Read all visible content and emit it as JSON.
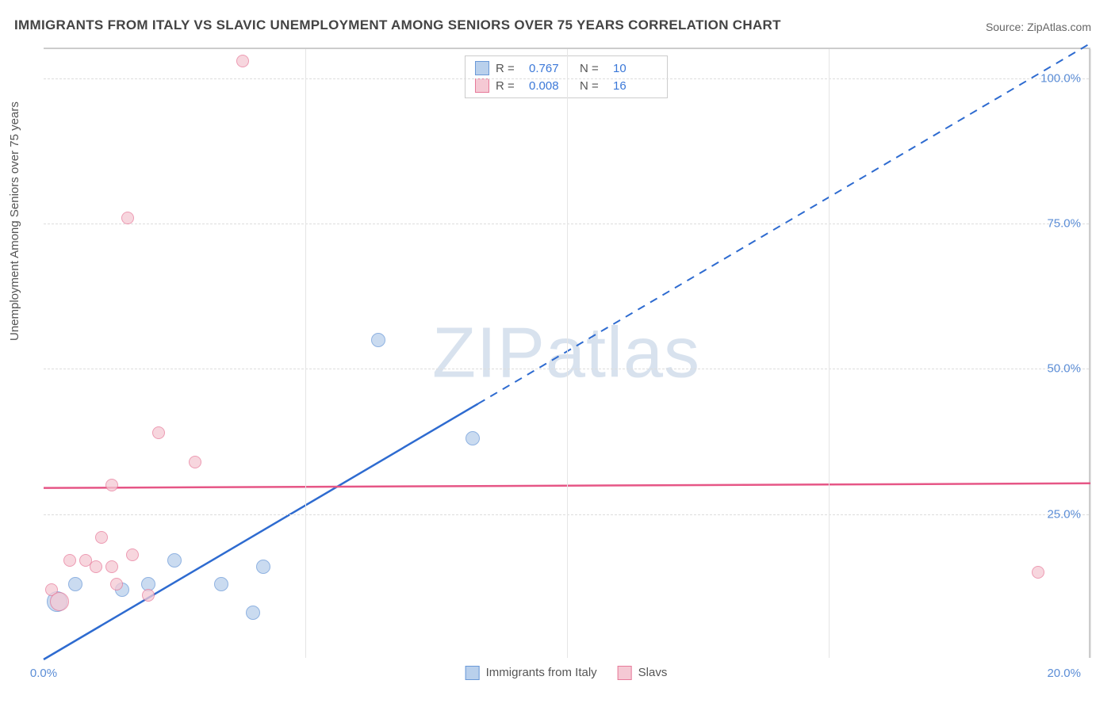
{
  "title": "IMMIGRANTS FROM ITALY VS SLAVIC UNEMPLOYMENT AMONG SENIORS OVER 75 YEARS CORRELATION CHART",
  "source_label": "Source:",
  "source_name": "ZipAtlas.com",
  "ylabel": "Unemployment Among Seniors over 75 years",
  "watermark": "ZIPatlas",
  "chart": {
    "type": "scatter",
    "background_color": "#ffffff",
    "grid_color": "#dddddd",
    "axis_color": "#cccccc",
    "tick_label_color": "#5b8dd6",
    "xlim": [
      0,
      20
    ],
    "ylim": [
      0,
      105
    ],
    "xtick_labels": [
      {
        "v": 0,
        "label": "0.0%"
      },
      {
        "v": 20,
        "label": "20.0%"
      }
    ],
    "xtick_lines": [
      5,
      10,
      15,
      20
    ],
    "ytick_labels": [
      {
        "v": 25,
        "label": "25.0%"
      },
      {
        "v": 50,
        "label": "50.0%"
      },
      {
        "v": 75,
        "label": "75.0%"
      },
      {
        "v": 100,
        "label": "100.0%"
      }
    ],
    "series": [
      {
        "name": "Immigrants from Italy",
        "fill": "#b9d0ec",
        "stroke": "#6a99d8",
        "line_color": "#2e6bd0",
        "trend": {
          "slope": 5.3,
          "intercept": 0,
          "solid_to_x": 8.3
        },
        "points": [
          {
            "x": 0.25,
            "y": 10,
            "r": 13
          },
          {
            "x": 0.6,
            "y": 13,
            "r": 9
          },
          {
            "x": 1.5,
            "y": 12,
            "r": 9
          },
          {
            "x": 2.0,
            "y": 13,
            "r": 9
          },
          {
            "x": 2.5,
            "y": 17,
            "r": 9
          },
          {
            "x": 3.4,
            "y": 13,
            "r": 9
          },
          {
            "x": 4.2,
            "y": 16,
            "r": 9
          },
          {
            "x": 4.0,
            "y": 8,
            "r": 9
          },
          {
            "x": 6.4,
            "y": 55,
            "r": 9
          },
          {
            "x": 8.2,
            "y": 38,
            "r": 9
          }
        ]
      },
      {
        "name": "Slavs",
        "fill": "#f5c9d4",
        "stroke": "#e77a9a",
        "line_color": "#e65686",
        "trend": {
          "slope": 0.04,
          "intercept": 29.5,
          "solid_to_x": 20
        },
        "points": [
          {
            "x": 0.15,
            "y": 12,
            "r": 8
          },
          {
            "x": 0.3,
            "y": 10,
            "r": 12
          },
          {
            "x": 0.5,
            "y": 17,
            "r": 8
          },
          {
            "x": 0.8,
            "y": 17,
            "r": 8
          },
          {
            "x": 1.0,
            "y": 16,
            "r": 8
          },
          {
            "x": 1.1,
            "y": 21,
            "r": 8
          },
          {
            "x": 1.3,
            "y": 16,
            "r": 8
          },
          {
            "x": 1.4,
            "y": 13,
            "r": 8
          },
          {
            "x": 1.3,
            "y": 30,
            "r": 8
          },
          {
            "x": 1.7,
            "y": 18,
            "r": 8
          },
          {
            "x": 2.0,
            "y": 11,
            "r": 8
          },
          {
            "x": 2.2,
            "y": 39,
            "r": 8
          },
          {
            "x": 2.9,
            "y": 34,
            "r": 8
          },
          {
            "x": 1.6,
            "y": 76,
            "r": 8
          },
          {
            "x": 3.8,
            "y": 103,
            "r": 8
          },
          {
            "x": 19.0,
            "y": 15,
            "r": 8
          }
        ]
      }
    ],
    "legend_top": [
      {
        "series_idx": 0,
        "r_label": "R =",
        "r_value": "0.767",
        "n_label": "N =",
        "n_value": "10"
      },
      {
        "series_idx": 1,
        "r_label": "R =",
        "r_value": "0.008",
        "n_label": "N =",
        "n_value": "16"
      }
    ]
  }
}
